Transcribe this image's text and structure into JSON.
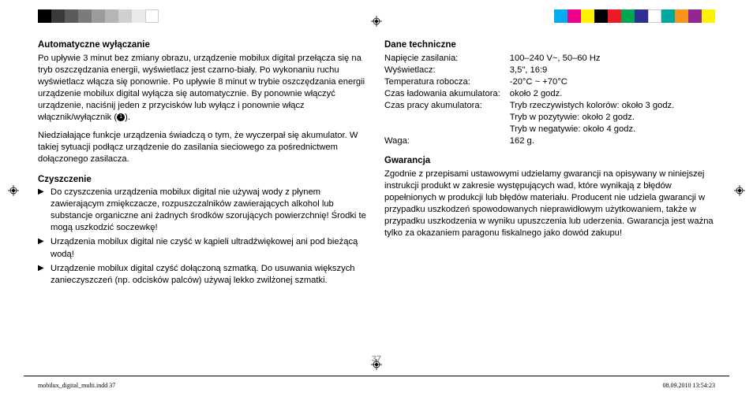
{
  "colorbar_left": [
    "#000000",
    "#3a3a3a",
    "#5b5b5b",
    "#7b7b7b",
    "#9b9b9b",
    "#b5b5b5",
    "#cfcfcf",
    "#eaeaea",
    "#ffffff"
  ],
  "colorbar_right": [
    "#00aeef",
    "#ec008c",
    "#fff200",
    "#000000",
    "#ed1c24",
    "#00a651",
    "#2e3192",
    "#ffffff",
    "#00a99d",
    "#f7941d",
    "#92278f",
    "#fff200"
  ],
  "left": {
    "sec1_title": "Automatyczne wyłączanie",
    "sec1_p1": "Po upływie 3 minut bez zmiany obrazu, urządzenie mobilux digital przełącza się na tryb oszczędzania energii, wyświetlacz jest czarno-biały. Po wykonaniu ruchu wyświetlacz włącza się ponownie. Po upływie 8 minut w trybie oszczędzania energii urządzenie mobilux digital wyłącza się automatycznie. By ponownie włączyć urządzenie, naciśnij jeden z przycisków lub wyłącz i ponownie włącz włącznik/wyłącznik (",
    "sec1_p1b": ").",
    "sec1_p2": "Niedziałające funkcje urządzenia świadczą o tym, że wyczerpał się akumulator. W takiej sytuacji podłącz urządzenie do zasilania sieciowego za pośrednictwem dołączonego zasilacza.",
    "sec2_title": "Czyszczenie",
    "sec2_items": [
      "Do czyszczenia urządzenia mobilux digital nie używaj wody z płynem zawierającym zmiękczacze, rozpuszczalników zawierających alkohol lub substancje organiczne ani żadnych środków szorujących powierzchnię! Środki te mogą uszkodzić soczewkę!",
      "Urządzenia mobilux digital nie czyść w kąpieli ultradźwiękowej ani pod bieżącą wodą!",
      "Urządzenie mobilux digital czyść dołączoną szmatką. Do usuwania większych zanieczyszczeń (np. odcisków palców) używaj lekko zwilżonej szmatki."
    ]
  },
  "right": {
    "sec3_title": "Dane techniczne",
    "specs": [
      [
        "Napięcie zasilania:",
        "100–240 V~, 50–60 Hz"
      ],
      [
        "Wyświetlacz:",
        "3,5\", 16:9"
      ],
      [
        "Temperatura robocza:",
        "-20°C ~ +70°C"
      ],
      [
        "Czas ładowania akumulatora:",
        "około 2 godz."
      ],
      [
        "Czas pracy akumulatora:",
        "Tryb rzeczywistych kolorów: około 3 godz."
      ],
      [
        "",
        "Tryb w pozytywie: około 2 godz."
      ],
      [
        "",
        "Tryb w negatywie: około 4 godz."
      ],
      [
        "Waga:",
        "162 g."
      ]
    ],
    "sec4_title": "Gwarancja",
    "sec4_p": "Zgodnie z przepisami ustawowymi udzielamy gwarancji na opisywany w niniejszej instrukcji produkt w zakresie występujących wad, które wynikają z błędów popełnionych w produkcji lub błędów materiału. Producent nie udziela gwarancji w przypadku uszkodzeń spowodowanych nieprawidłowym użytkowaniem, także w przypadku uszkodzenia w wyniku upuszczenia lub uderzenia. Gwarancja jest ważna tylko za okazaniem paragonu fiskalnego jako dowód zakupu!"
  },
  "page_number": "37",
  "footer_left": "mobilux_digital_multi.indd   37",
  "footer_right": "08.09.2010   13:54:23"
}
